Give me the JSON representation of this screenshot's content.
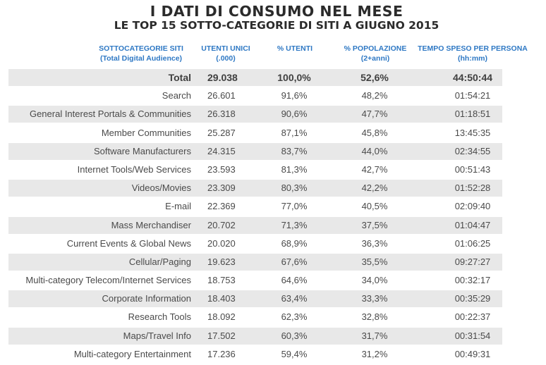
{
  "title": "I DATI DI CONSUMO NEL MESE",
  "subtitle": "LE TOP 15 SOTTO-CATEGORIE DI SITI A GIUGNO 2015",
  "headers": {
    "category": [
      "SOTTOCATEGORIE SITI",
      "(Total Digital Audience)"
    ],
    "unique_users": [
      "UTENTI UNICI",
      "(.000)"
    ],
    "pct_users": [
      "% UTENTI"
    ],
    "pct_population": [
      "% POPOLAZIONE",
      "(2+anni)"
    ],
    "time_per_person": [
      "TEMPO SPESO PER PERSONA",
      "(hh:mm)"
    ]
  },
  "rows": [
    {
      "category": "Total",
      "users": "29.038",
      "pct_users": "100,0%",
      "pct_pop": "52,6%",
      "time": "44:50:44"
    },
    {
      "category": "Search",
      "users": "26.601",
      "pct_users": "91,6%",
      "pct_pop": "48,2%",
      "time": "01:54:21"
    },
    {
      "category": "General Interest Portals & Communities",
      "users": "26.318",
      "pct_users": "90,6%",
      "pct_pop": "47,7%",
      "time": "01:18:51"
    },
    {
      "category": "Member Communities",
      "users": "25.287",
      "pct_users": "87,1%",
      "pct_pop": "45,8%",
      "time": "13:45:35"
    },
    {
      "category": "Software Manufacturers",
      "users": "24.315",
      "pct_users": "83,7%",
      "pct_pop": "44,0%",
      "time": "02:34:55"
    },
    {
      "category": "Internet Tools/Web Services",
      "users": "23.593",
      "pct_users": "81,3%",
      "pct_pop": "42,7%",
      "time": "00:51:43"
    },
    {
      "category": "Videos/Movies",
      "users": "23.309",
      "pct_users": "80,3%",
      "pct_pop": "42,2%",
      "time": "01:52:28"
    },
    {
      "category": "E-mail",
      "users": "22.369",
      "pct_users": "77,0%",
      "pct_pop": "40,5%",
      "time": "02:09:40"
    },
    {
      "category": "Mass Merchandiser",
      "users": "20.702",
      "pct_users": "71,3%",
      "pct_pop": "37,5%",
      "time": "01:04:47"
    },
    {
      "category": "Current Events & Global News",
      "users": "20.020",
      "pct_users": "68,9%",
      "pct_pop": "36,3%",
      "time": "01:06:25"
    },
    {
      "category": "Cellular/Paging",
      "users": "19.623",
      "pct_users": "67,6%",
      "pct_pop": "35,5%",
      "time": "09:27:27"
    },
    {
      "category": "Multi-category Telecom/Internet Services",
      "users": "18.753",
      "pct_users": "64,6%",
      "pct_pop": "34,0%",
      "time": "00:32:17"
    },
    {
      "category": "Corporate Information",
      "users": "18.403",
      "pct_users": "63,4%",
      "pct_pop": "33,3%",
      "time": "00:35:29"
    },
    {
      "category": "Research Tools",
      "users": "18.092",
      "pct_users": "62,3%",
      "pct_pop": "32,8%",
      "time": "00:22:37"
    },
    {
      "category": "Maps/Travel Info",
      "users": "17.502",
      "pct_users": "60,3%",
      "pct_pop": "31,7%",
      "time": "00:31:54"
    },
    {
      "category": "Multi-category Entertainment",
      "users": "17.236",
      "pct_users": "59,4%",
      "pct_pop": "31,2%",
      "time": "00:49:31"
    }
  ],
  "colors": {
    "header_text": "#2e78c4",
    "title_text": "#2b2b2b",
    "row_band": "#e8e8e8",
    "body_text": "#4a4a4a"
  }
}
